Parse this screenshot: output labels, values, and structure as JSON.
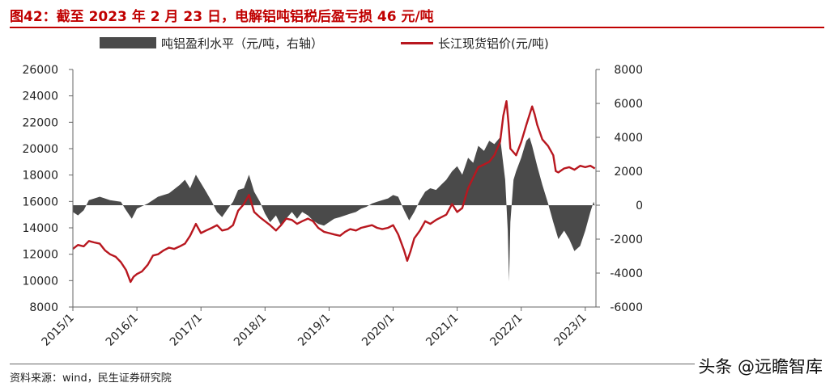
{
  "title": "图42：截至 2023 年 2 月 23 日，电解铝吨铝税后盈亏损 46 元/吨",
  "legend": {
    "bar_label": "吨铝盈利水平（元/吨，右轴）",
    "line_label": "长江现货铝价(元/吨)"
  },
  "source": "资料来源：wind，民生证券研究院",
  "watermark": "头条 @远瞻智库",
  "colors": {
    "title": "#c00000",
    "bar": "#4a4a4a",
    "line": "#b8171f"
  },
  "chart_data": {
    "type": "area",
    "x_tick_labels": [
      "2015/1",
      "2016/1",
      "2017/1",
      "2018/1",
      "2019/1",
      "2020/1",
      "2021/1",
      "2022/1",
      "2023/1"
    ],
    "xlim": [
      "2015/1",
      "2023/3"
    ],
    "y_left": {
      "ticks": [
        8000,
        10000,
        12000,
        14000,
        16000,
        18000,
        20000,
        22000,
        24000,
        26000
      ],
      "lim": [
        8000,
        26000
      ]
    },
    "y_right": {
      "ticks": [
        -6000,
        -4000,
        -2000,
        0,
        2000,
        4000,
        6000,
        8000
      ],
      "lim": [
        -6000,
        8000
      ]
    },
    "grid": false,
    "legend_position": "top",
    "series": [
      {
        "name": "吨铝盈利水平（元/吨，右轴）",
        "kind": "area",
        "axis": "right",
        "points": [
          [
            2015.0,
            -400
          ],
          [
            2015.08,
            -600
          ],
          [
            2015.17,
            -300
          ],
          [
            2015.25,
            300
          ],
          [
            2015.42,
            500
          ],
          [
            2015.58,
            300
          ],
          [
            2015.75,
            200
          ],
          [
            2015.83,
            -300
          ],
          [
            2015.92,
            -800
          ],
          [
            2016.0,
            -200
          ],
          [
            2016.17,
            100
          ],
          [
            2016.33,
            500
          ],
          [
            2016.5,
            700
          ],
          [
            2016.67,
            1200
          ],
          [
            2016.75,
            1500
          ],
          [
            2016.83,
            1000
          ],
          [
            2016.92,
            1800
          ],
          [
            2017.0,
            1300
          ],
          [
            2017.08,
            800
          ],
          [
            2017.17,
            200
          ],
          [
            2017.25,
            -400
          ],
          [
            2017.33,
            -700
          ],
          [
            2017.42,
            -200
          ],
          [
            2017.5,
            200
          ],
          [
            2017.58,
            900
          ],
          [
            2017.67,
            1000
          ],
          [
            2017.75,
            1800
          ],
          [
            2017.83,
            800
          ],
          [
            2017.92,
            200
          ],
          [
            2018.0,
            -500
          ],
          [
            2018.08,
            -1000
          ],
          [
            2018.17,
            -600
          ],
          [
            2018.25,
            -1200
          ],
          [
            2018.33,
            -800
          ],
          [
            2018.42,
            -400
          ],
          [
            2018.5,
            -800
          ],
          [
            2018.58,
            -400
          ],
          [
            2018.67,
            -600
          ],
          [
            2018.75,
            -900
          ],
          [
            2018.83,
            -1100
          ],
          [
            2018.92,
            -1200
          ],
          [
            2019.0,
            -1000
          ],
          [
            2019.08,
            -800
          ],
          [
            2019.17,
            -700
          ],
          [
            2019.25,
            -600
          ],
          [
            2019.33,
            -500
          ],
          [
            2019.42,
            -400
          ],
          [
            2019.5,
            -200
          ],
          [
            2019.58,
            -100
          ],
          [
            2019.67,
            100
          ],
          [
            2019.75,
            200
          ],
          [
            2019.83,
            300
          ],
          [
            2019.92,
            400
          ],
          [
            2020.0,
            600
          ],
          [
            2020.08,
            500
          ],
          [
            2020.17,
            -300
          ],
          [
            2020.25,
            -900
          ],
          [
            2020.33,
            -400
          ],
          [
            2020.42,
            300
          ],
          [
            2020.5,
            800
          ],
          [
            2020.58,
            1000
          ],
          [
            2020.67,
            900
          ],
          [
            2020.75,
            1200
          ],
          [
            2020.83,
            1500
          ],
          [
            2020.92,
            2000
          ],
          [
            2021.0,
            2300
          ],
          [
            2021.08,
            1800
          ],
          [
            2021.17,
            2800
          ],
          [
            2021.25,
            2500
          ],
          [
            2021.33,
            3500
          ],
          [
            2021.42,
            3200
          ],
          [
            2021.5,
            3800
          ],
          [
            2021.58,
            3600
          ],
          [
            2021.67,
            4000
          ],
          [
            2021.75,
            1500
          ],
          [
            2021.79,
            -1500
          ],
          [
            2021.81,
            -4500
          ],
          [
            2021.83,
            -1000
          ],
          [
            2021.88,
            1500
          ],
          [
            2021.92,
            2000
          ],
          [
            2022.0,
            2800
          ],
          [
            2022.08,
            3800
          ],
          [
            2022.13,
            4000
          ],
          [
            2022.17,
            3500
          ],
          [
            2022.25,
            2300
          ],
          [
            2022.33,
            1200
          ],
          [
            2022.42,
            100
          ],
          [
            2022.5,
            -1000
          ],
          [
            2022.58,
            -2000
          ],
          [
            2022.67,
            -1500
          ],
          [
            2022.75,
            -2000
          ],
          [
            2022.83,
            -2700
          ],
          [
            2022.92,
            -2400
          ],
          [
            2023.0,
            -1500
          ],
          [
            2023.08,
            -400
          ],
          [
            2023.13,
            200
          ],
          [
            2023.15,
            -46
          ]
        ]
      },
      {
        "name": "长江现货铝价(元/吨)",
        "kind": "line",
        "axis": "left",
        "points": [
          [
            2015.0,
            12400
          ],
          [
            2015.08,
            12700
          ],
          [
            2015.17,
            12600
          ],
          [
            2015.25,
            13000
          ],
          [
            2015.33,
            12900
          ],
          [
            2015.42,
            12800
          ],
          [
            2015.5,
            12300
          ],
          [
            2015.58,
            12000
          ],
          [
            2015.67,
            11800
          ],
          [
            2015.75,
            11400
          ],
          [
            2015.83,
            10800
          ],
          [
            2015.9,
            9900
          ],
          [
            2015.95,
            10300
          ],
          [
            2016.0,
            10500
          ],
          [
            2016.08,
            10700
          ],
          [
            2016.17,
            11200
          ],
          [
            2016.25,
            11900
          ],
          [
            2016.33,
            12000
          ],
          [
            2016.42,
            12300
          ],
          [
            2016.5,
            12500
          ],
          [
            2016.58,
            12400
          ],
          [
            2016.67,
            12600
          ],
          [
            2016.75,
            12800
          ],
          [
            2016.83,
            13400
          ],
          [
            2016.92,
            14300
          ],
          [
            2017.0,
            13600
          ],
          [
            2017.08,
            13800
          ],
          [
            2017.17,
            14000
          ],
          [
            2017.25,
            14200
          ],
          [
            2017.33,
            13800
          ],
          [
            2017.42,
            13900
          ],
          [
            2017.5,
            14200
          ],
          [
            2017.58,
            15300
          ],
          [
            2017.67,
            15800
          ],
          [
            2017.75,
            16500
          ],
          [
            2017.83,
            15200
          ],
          [
            2017.92,
            14800
          ],
          [
            2018.0,
            14500
          ],
          [
            2018.08,
            14200
          ],
          [
            2018.17,
            13800
          ],
          [
            2018.25,
            14200
          ],
          [
            2018.33,
            14700
          ],
          [
            2018.42,
            14600
          ],
          [
            2018.5,
            14300
          ],
          [
            2018.58,
            14500
          ],
          [
            2018.67,
            14700
          ],
          [
            2018.75,
            14500
          ],
          [
            2018.83,
            14000
          ],
          [
            2018.92,
            13700
          ],
          [
            2019.0,
            13600
          ],
          [
            2019.08,
            13500
          ],
          [
            2019.17,
            13400
          ],
          [
            2019.25,
            13700
          ],
          [
            2019.33,
            13900
          ],
          [
            2019.42,
            13800
          ],
          [
            2019.5,
            14000
          ],
          [
            2019.58,
            14100
          ],
          [
            2019.67,
            14200
          ],
          [
            2019.75,
            14000
          ],
          [
            2019.83,
            13900
          ],
          [
            2019.92,
            14000
          ],
          [
            2020.0,
            14200
          ],
          [
            2020.08,
            13500
          ],
          [
            2020.17,
            12300
          ],
          [
            2020.22,
            11500
          ],
          [
            2020.27,
            12200
          ],
          [
            2020.33,
            13200
          ],
          [
            2020.42,
            13800
          ],
          [
            2020.5,
            14500
          ],
          [
            2020.58,
            14300
          ],
          [
            2020.67,
            14600
          ],
          [
            2020.75,
            14800
          ],
          [
            2020.83,
            15000
          ],
          [
            2020.92,
            15800
          ],
          [
            2021.0,
            15200
          ],
          [
            2021.08,
            15500
          ],
          [
            2021.17,
            17000
          ],
          [
            2021.25,
            17800
          ],
          [
            2021.33,
            18600
          ],
          [
            2021.42,
            18800
          ],
          [
            2021.5,
            19000
          ],
          [
            2021.58,
            19500
          ],
          [
            2021.67,
            20500
          ],
          [
            2021.72,
            22500
          ],
          [
            2021.77,
            23600
          ],
          [
            2021.8,
            22000
          ],
          [
            2021.83,
            20000
          ],
          [
            2021.92,
            19500
          ],
          [
            2022.0,
            20500
          ],
          [
            2022.08,
            21800
          ],
          [
            2022.17,
            23200
          ],
          [
            2022.21,
            22600
          ],
          [
            2022.25,
            21800
          ],
          [
            2022.33,
            20700
          ],
          [
            2022.42,
            20200
          ],
          [
            2022.5,
            19500
          ],
          [
            2022.54,
            18300
          ],
          [
            2022.58,
            18200
          ],
          [
            2022.67,
            18500
          ],
          [
            2022.75,
            18600
          ],
          [
            2022.83,
            18400
          ],
          [
            2022.92,
            18700
          ],
          [
            2023.0,
            18600
          ],
          [
            2023.08,
            18700
          ],
          [
            2023.15,
            18500
          ]
        ]
      }
    ]
  }
}
